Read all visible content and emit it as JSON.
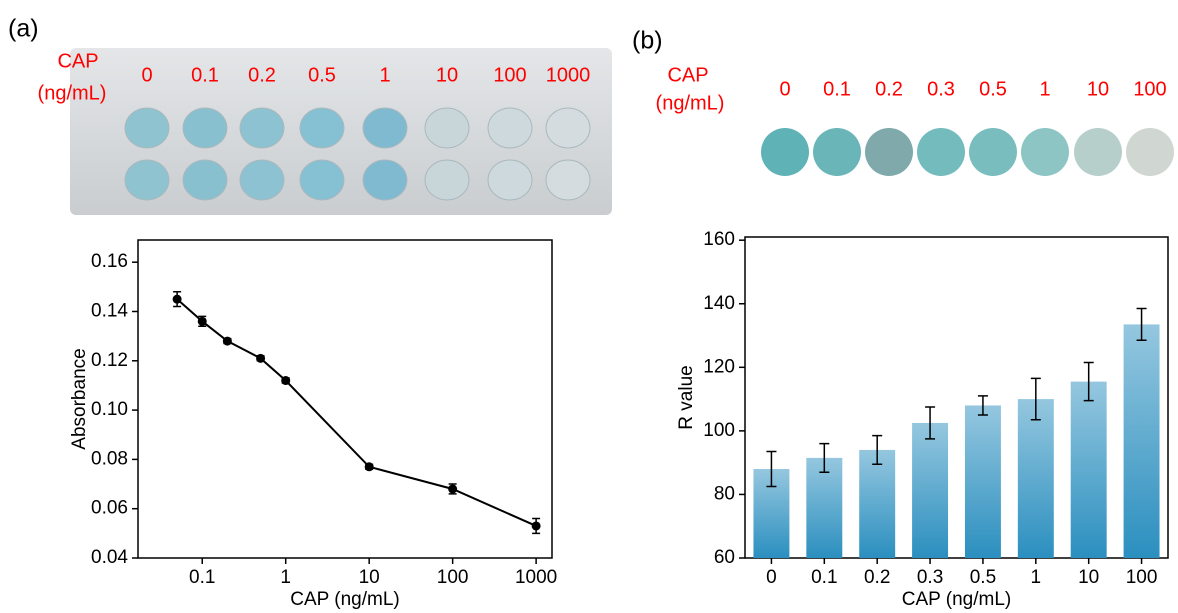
{
  "figure": {
    "panel_labels": [
      "(a)",
      "(b)"
    ],
    "photo_a": {
      "label": [
        "CAP",
        "(ng/mL)"
      ],
      "concentrations": [
        "0",
        "0.1",
        "0.2",
        "0.5",
        "1",
        "10",
        "100",
        "1000"
      ]
    },
    "photo_b": {
      "label": [
        "CAP",
        "(ng/mL)"
      ],
      "concentrations": [
        "0",
        "0.1",
        "0.2",
        "0.3",
        "0.5",
        "1",
        "10",
        "100"
      ]
    }
  },
  "chart_data": [
    {
      "type": "line",
      "xlabel": "CAP (ng/mL)",
      "ylabel": "Absorbance",
      "log_x": true,
      "x": [
        0.05,
        0.1,
        0.2,
        0.5,
        1,
        10,
        100,
        1000
      ],
      "values": [
        0.145,
        0.136,
        0.128,
        0.121,
        0.112,
        0.077,
        0.068,
        0.053
      ],
      "errors": [
        0.003,
        0.002,
        0.001,
        0.001,
        0.001,
        0.001,
        0.002,
        0.003
      ],
      "color": "#000000",
      "xlim": [
        0.017,
        1550
      ],
      "xticks": [
        0.1,
        1,
        10,
        100,
        1000
      ],
      "ylim": [
        0.04,
        0.169
      ],
      "yticks": [
        0.04,
        0.06,
        0.08,
        {
          "value": 0.1,
          "label": "0.10"
        },
        0.12,
        0.14,
        0.16
      ]
    },
    {
      "type": "bar",
      "xlabel": "CAP (ng/mL)",
      "ylabel": "R value",
      "categories": [
        "0",
        "0.1",
        "0.2",
        "0.3",
        "0.5",
        "1",
        "10",
        "100"
      ],
      "values": [
        88,
        91.5,
        94,
        102.5,
        108,
        110,
        115.5,
        133.5
      ],
      "errors": [
        5.5,
        4.5,
        4.5,
        5,
        3,
        6.5,
        6,
        5
      ],
      "color": "#2b8fbf",
      "ylim": [
        60,
        161
      ],
      "yticks": [
        60,
        80,
        100,
        120,
        140,
        160
      ]
    }
  ]
}
